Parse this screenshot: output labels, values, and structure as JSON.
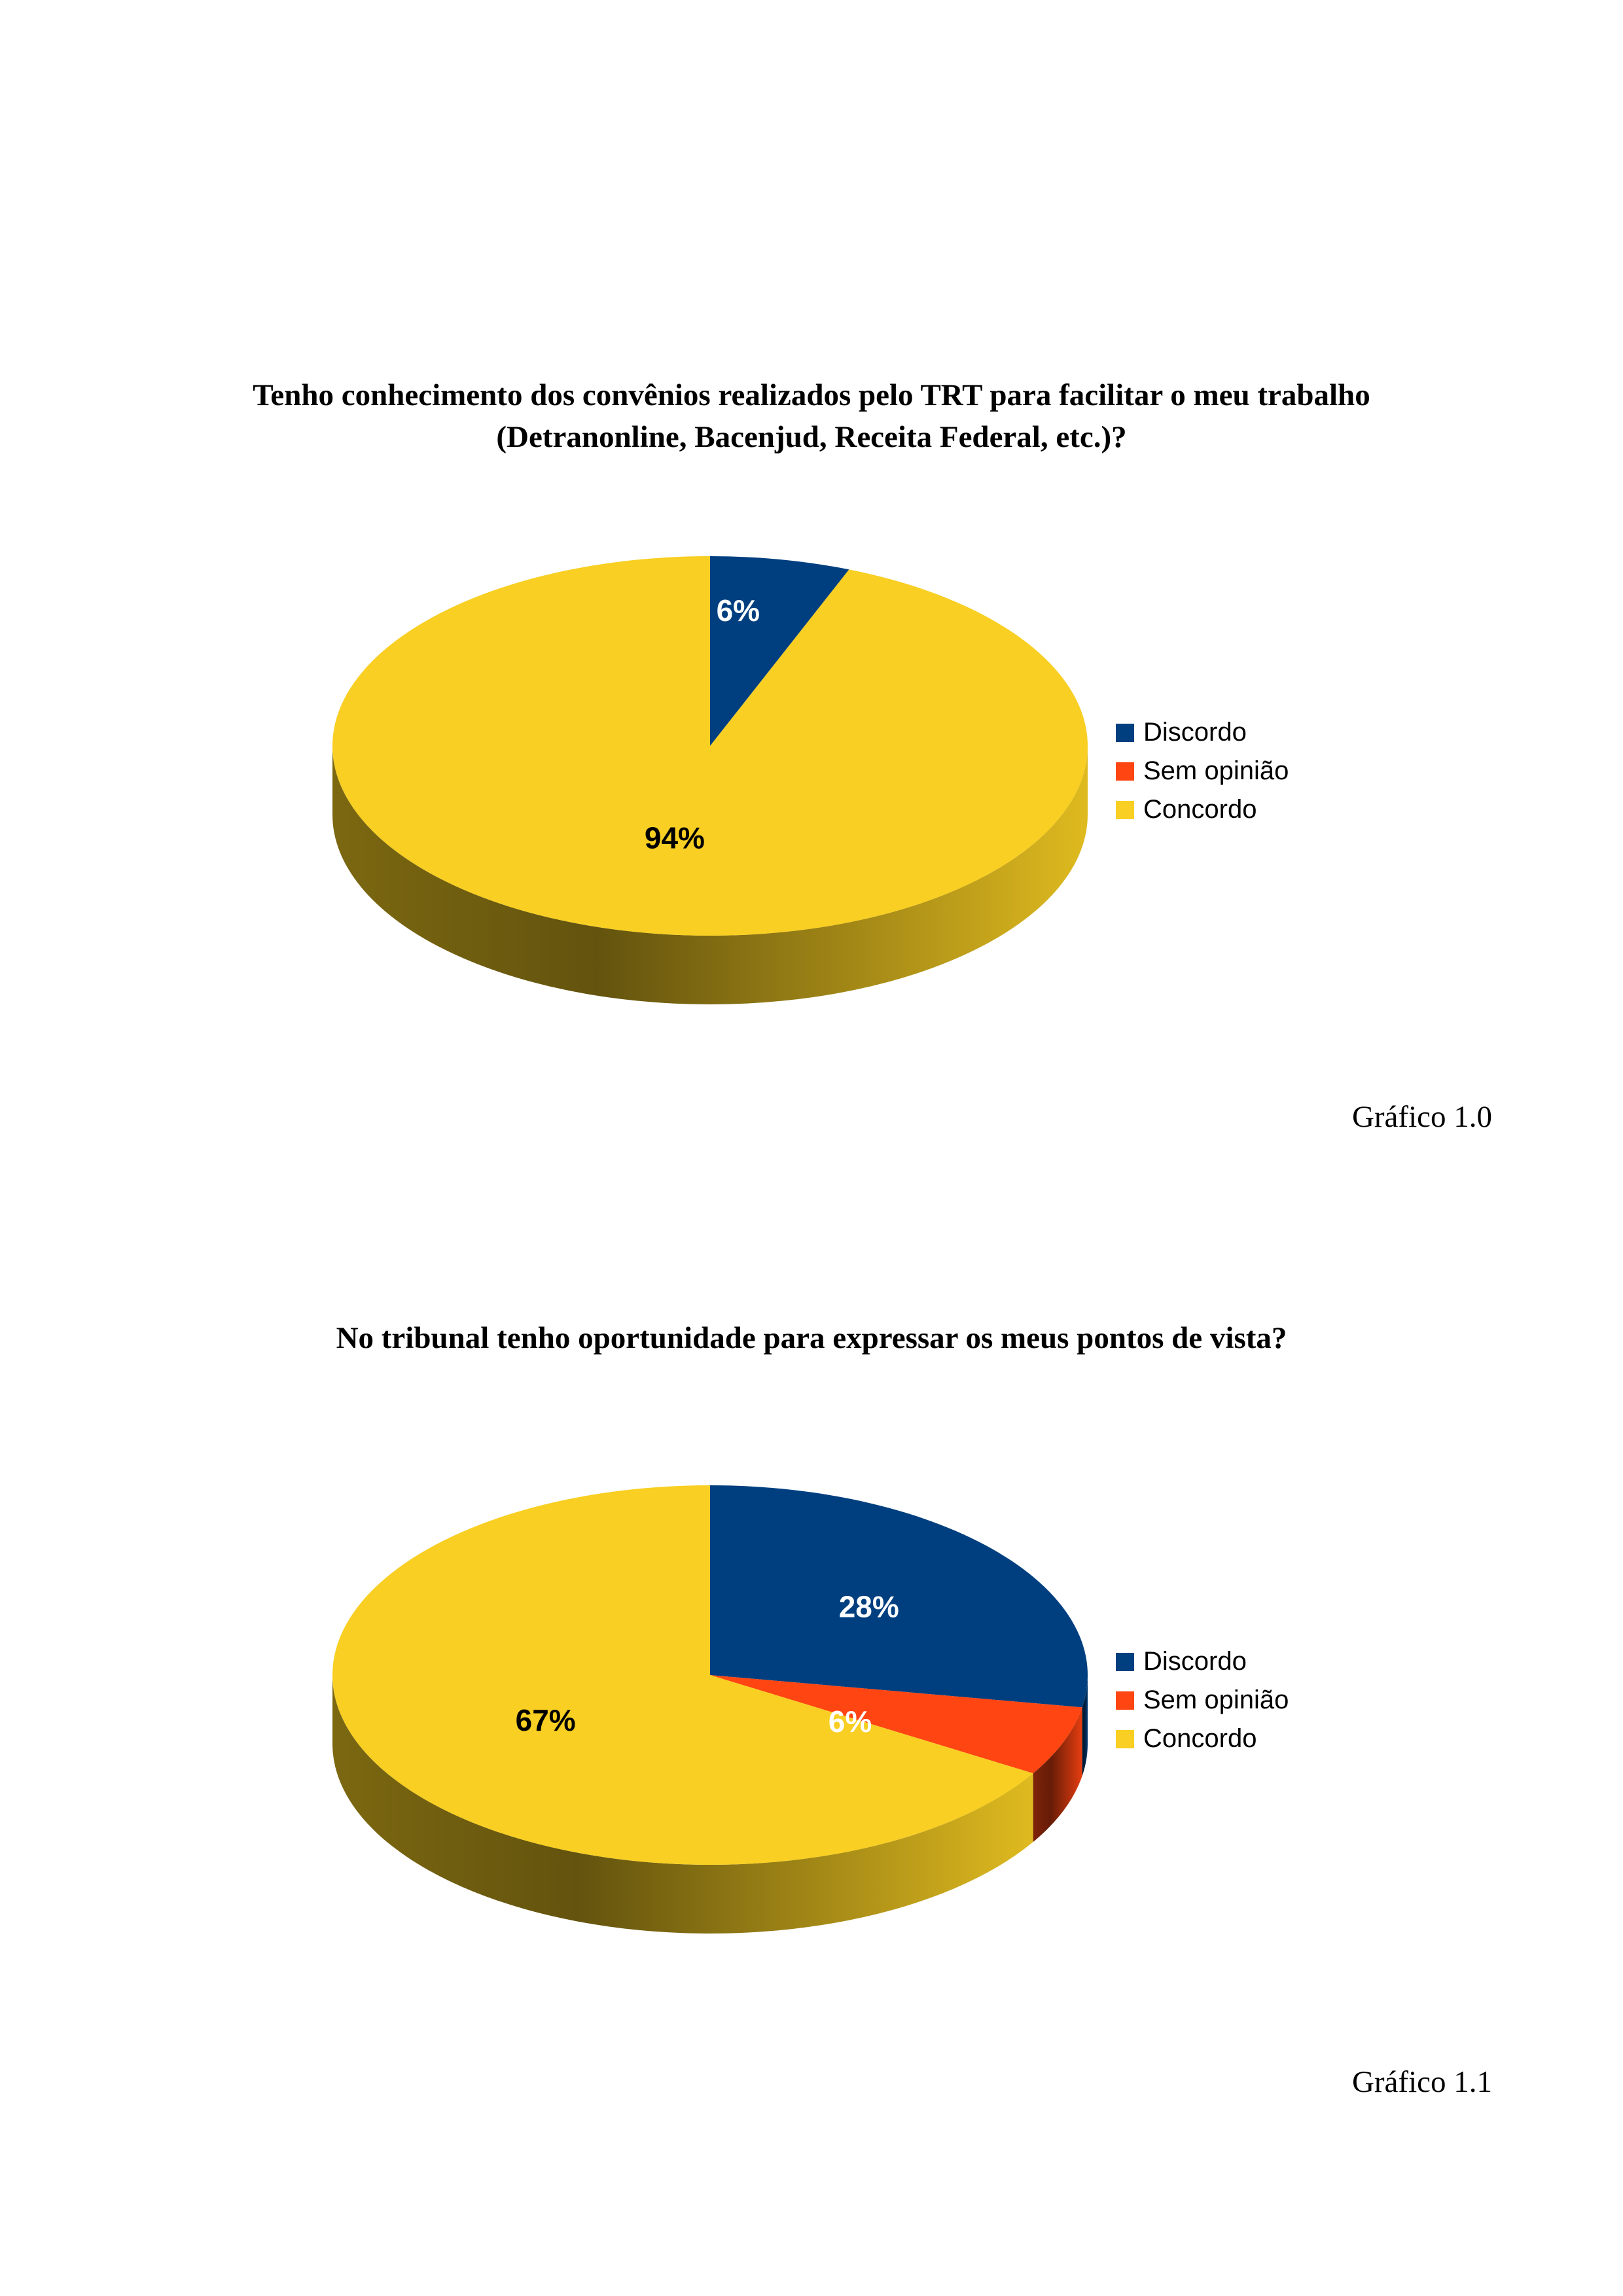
{
  "colors": {
    "discordo": "#003f7f",
    "sem_opiniao": "#ff4512",
    "concordo": "#f8cf22"
  },
  "chart_data": [
    {
      "type": "pie",
      "title_line1": "Tenho conhecimento dos convênios realizados pelo TRT para facilitar o meu trabalho",
      "title_line2": "(Detranonline, Bacenjud, Receita Federal, etc.)?",
      "categories": [
        "Discordo",
        "Sem opinião",
        "Concordo"
      ],
      "values": [
        6,
        0,
        94
      ],
      "labels": [
        "6%",
        "",
        "94%"
      ],
      "legend_position": "right",
      "caption": "Gráfico 1.0"
    },
    {
      "type": "pie",
      "title_line1": "No tribunal tenho oportunidade para expressar os meus pontos de vista?",
      "title_line2": "",
      "categories": [
        "Discordo",
        "Sem opinião",
        "Concordo"
      ],
      "values": [
        28,
        6,
        67
      ],
      "labels": [
        "28%",
        "6%",
        "67%"
      ],
      "legend_position": "right",
      "caption": "Gráfico 1.1"
    }
  ]
}
